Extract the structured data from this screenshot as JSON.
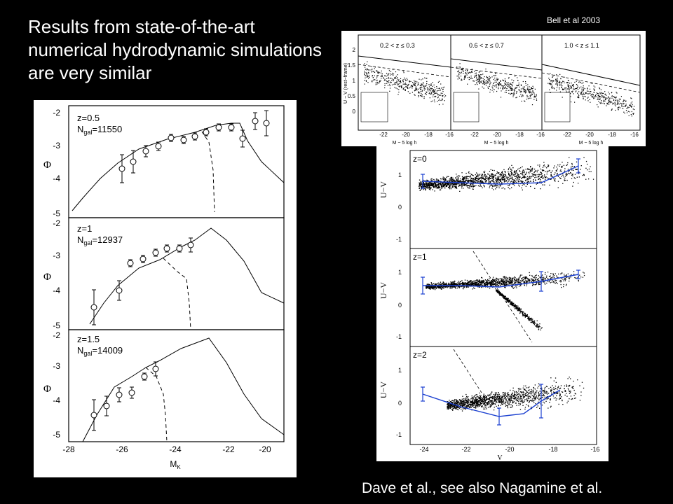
{
  "slide": {
    "title": "Results from state-of-the-art numerical hydrodynamic simulations are very similar",
    "credit_top": "Bell et al 2003",
    "credit_bottom": "Dave et al., see also Nagamine et al."
  },
  "left_figure": {
    "ylabel": "Φ",
    "xlabel": "M",
    "xlabel_sub": "K",
    "x_ticks": [
      "-28",
      "-26",
      "-24",
      "-22",
      "-20"
    ],
    "panels": [
      {
        "z": "z=0.5",
        "ngal_label": "N",
        "ngal_sub": "gal",
        "ngal_value": "=11550",
        "y_ticks": [
          "-2",
          "-3",
          "-4",
          "-5"
        ]
      },
      {
        "z": "z=1",
        "ngal_label": "N",
        "ngal_sub": "gal",
        "ngal_value": "=12937",
        "y_ticks": [
          "-2",
          "-3",
          "-4",
          "-5"
        ]
      },
      {
        "z": "z=1.5",
        "ngal_label": "N",
        "ngal_sub": "gal",
        "ngal_value": "=14009",
        "y_ticks": [
          "-2",
          "-3",
          "-4",
          "-5"
        ]
      }
    ]
  },
  "top_right_figure": {
    "panels": [
      {
        "label": "0.2 < z ≤ 0.3",
        "xlabel": "M  − 5 log   h",
        "x_ticks": [
          "-22",
          "-20",
          "-18",
          "-16"
        ]
      },
      {
        "label": "0.6 < z ≤ 0.7",
        "xlabel": "M  − 5 log   h",
        "x_ticks": [
          "-22",
          "-20",
          "-18",
          "-16"
        ]
      },
      {
        "label": "1.0 < z ≤ 1.1",
        "xlabel": "M  − 5 log   h",
        "x_ticks": [
          "-22",
          "-20",
          "-18",
          "-16"
        ]
      }
    ],
    "ylabel": "U − V (rest−frame)",
    "y_ticks": [
      "2",
      "1.5",
      "1",
      "0.5",
      "0"
    ]
  },
  "bottom_right_figure": {
    "ylabel": "U−V",
    "xlabel": "V",
    "x_ticks": [
      "-24",
      "-22",
      "-20",
      "-18",
      "-16"
    ],
    "panels": [
      {
        "z": "z=0",
        "y_ticks": [
          "1",
          "0",
          "-1"
        ]
      },
      {
        "z": "z=1",
        "y_ticks": [
          "1",
          "0",
          "-1"
        ]
      },
      {
        "z": "z=2",
        "y_ticks": [
          "1",
          "0",
          "-1"
        ]
      }
    ]
  }
}
